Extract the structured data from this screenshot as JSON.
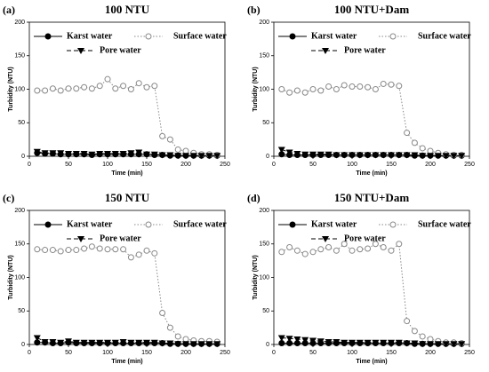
{
  "chart_data": [
    {
      "type": "line",
      "panel": "(a)",
      "title": "100 NTU",
      "xlabel": "Time (min)",
      "ylabel": "Turbidity (NTU)",
      "x": [
        10,
        20,
        30,
        40,
        50,
        60,
        70,
        80,
        90,
        100,
        110,
        120,
        130,
        140,
        150,
        160,
        170,
        180,
        190,
        200,
        210,
        220,
        230,
        240
      ],
      "xlim": [
        0,
        250
      ],
      "xticks": [
        0,
        50,
        100,
        150,
        200,
        250
      ],
      "ylim": [
        0,
        200
      ],
      "yticks": [
        0,
        50,
        100,
        150,
        200
      ],
      "series": [
        {
          "name": "Karst water",
          "color": "#000000",
          "marker": "circle-filled",
          "line_style": "solid",
          "values": [
            5,
            4,
            4,
            3,
            3,
            3,
            3,
            2,
            3,
            3,
            3,
            3,
            3,
            3,
            3,
            2,
            2,
            1,
            1,
            1,
            1,
            1,
            1,
            1
          ]
        },
        {
          "name": "Surface water",
          "color": "#888888",
          "marker": "circle-open",
          "line_style": "dotted",
          "values": [
            98,
            98,
            101,
            98,
            101,
            101,
            103,
            101,
            105,
            115,
            101,
            105,
            100,
            109,
            103,
            105,
            30,
            25,
            10,
            8,
            5,
            3,
            3,
            2
          ]
        },
        {
          "name": "Pore water",
          "color": "#000000",
          "marker": "triangle-down",
          "line_style": "dashed",
          "values": [
            7,
            5,
            5,
            5,
            4,
            4,
            4,
            3,
            4,
            4,
            4,
            4,
            5,
            6,
            3,
            3,
            2,
            2,
            1,
            1,
            1,
            1,
            1,
            1
          ]
        }
      ]
    },
    {
      "type": "line",
      "panel": "(b)",
      "title": "100 NTU+Dam",
      "xlabel": "Time (min)",
      "ylabel": "Turbidity (NTU)",
      "x": [
        10,
        20,
        30,
        40,
        50,
        60,
        70,
        80,
        90,
        100,
        110,
        120,
        130,
        140,
        150,
        160,
        170,
        180,
        190,
        200,
        210,
        220,
        230,
        240
      ],
      "xlim": [
        0,
        250
      ],
      "xticks": [
        0,
        50,
        100,
        150,
        200,
        250
      ],
      "ylim": [
        0,
        200
      ],
      "yticks": [
        0,
        50,
        100,
        150,
        200
      ],
      "series": [
        {
          "name": "Karst water",
          "color": "#000000",
          "marker": "circle-filled",
          "line_style": "solid",
          "values": [
            3,
            2,
            2,
            2,
            2,
            2,
            2,
            2,
            2,
            2,
            2,
            2,
            2,
            2,
            2,
            2,
            2,
            1,
            1,
            1,
            1,
            1,
            1,
            1
          ]
        },
        {
          "name": "Surface water",
          "color": "#888888",
          "marker": "circle-open",
          "line_style": "dotted",
          "values": [
            100,
            95,
            98,
            95,
            100,
            98,
            104,
            100,
            106,
            104,
            104,
            103,
            100,
            108,
            107,
            105,
            35,
            20,
            12,
            8,
            5,
            3,
            2,
            2
          ]
        },
        {
          "name": "Pore water",
          "color": "#000000",
          "marker": "triangle-down",
          "line_style": "dashed",
          "values": [
            10,
            6,
            4,
            3,
            3,
            3,
            3,
            2,
            2,
            2,
            2,
            2,
            2,
            2,
            2,
            2,
            2,
            2,
            1,
            1,
            1,
            1,
            1,
            1
          ]
        }
      ]
    },
    {
      "type": "line",
      "panel": "(c)",
      "title": "150 NTU",
      "xlabel": "Time (min)",
      "ylabel": "Turbidity (NTU)",
      "x": [
        10,
        20,
        30,
        40,
        50,
        60,
        70,
        80,
        90,
        100,
        110,
        120,
        130,
        140,
        150,
        160,
        170,
        180,
        190,
        200,
        210,
        220,
        230,
        240
      ],
      "xlim": [
        0,
        250
      ],
      "xticks": [
        0,
        50,
        100,
        150,
        200,
        250
      ],
      "ylim": [
        0,
        200
      ],
      "yticks": [
        0,
        50,
        100,
        150,
        200
      ],
      "series": [
        {
          "name": "Karst water",
          "color": "#000000",
          "marker": "circle-filled",
          "line_style": "solid",
          "values": [
            3,
            3,
            2,
            2,
            3,
            2,
            2,
            2,
            2,
            2,
            2,
            2,
            2,
            2,
            2,
            2,
            2,
            1,
            1,
            1,
            1,
            1,
            1,
            1
          ]
        },
        {
          "name": "Surface water",
          "color": "#888888",
          "marker": "circle-open",
          "line_style": "dotted",
          "values": [
            142,
            141,
            141,
            139,
            141,
            141,
            143,
            146,
            143,
            142,
            142,
            142,
            130,
            134,
            140,
            136,
            47,
            25,
            12,
            8,
            6,
            5,
            5,
            4
          ]
        },
        {
          "name": "Pore water",
          "color": "#000000",
          "marker": "triangle-down",
          "line_style": "dashed",
          "values": [
            10,
            4,
            4,
            3,
            5,
            3,
            3,
            3,
            3,
            3,
            3,
            4,
            3,
            3,
            3,
            3,
            2,
            2,
            1,
            1,
            1,
            1,
            1,
            1
          ]
        }
      ]
    },
    {
      "type": "line",
      "panel": "(d)",
      "title": "150 NTU+Dam",
      "xlabel": "Time (min)",
      "ylabel": "Turbidity (NTU)",
      "x": [
        10,
        20,
        30,
        40,
        50,
        60,
        70,
        80,
        90,
        100,
        110,
        120,
        130,
        140,
        150,
        160,
        170,
        180,
        190,
        200,
        210,
        220,
        230,
        240
      ],
      "xlim": [
        0,
        250
      ],
      "xticks": [
        0,
        50,
        100,
        150,
        200,
        250
      ],
      "ylim": [
        0,
        200
      ],
      "yticks": [
        0,
        50,
        100,
        150,
        200
      ],
      "series": [
        {
          "name": "Karst water",
          "color": "#000000",
          "marker": "circle-filled",
          "line_style": "solid",
          "values": [
            2,
            2,
            2,
            2,
            2,
            2,
            2,
            2,
            2,
            2,
            2,
            2,
            2,
            2,
            2,
            2,
            2,
            1,
            1,
            1,
            1,
            1,
            1,
            1
          ]
        },
        {
          "name": "Surface water",
          "color": "#888888",
          "marker": "circle-open",
          "line_style": "dotted",
          "values": [
            138,
            145,
            140,
            135,
            138,
            142,
            145,
            140,
            150,
            140,
            142,
            143,
            150,
            145,
            140,
            150,
            35,
            20,
            12,
            8,
            5,
            3,
            3,
            2
          ]
        },
        {
          "name": "Pore water",
          "color": "#000000",
          "marker": "triangle-down",
          "line_style": "dashed",
          "values": [
            10,
            9,
            8,
            7,
            6,
            5,
            4,
            4,
            3,
            3,
            3,
            3,
            3,
            3,
            3,
            3,
            2,
            2,
            1,
            1,
            1,
            1,
            1,
            1
          ]
        }
      ]
    }
  ]
}
